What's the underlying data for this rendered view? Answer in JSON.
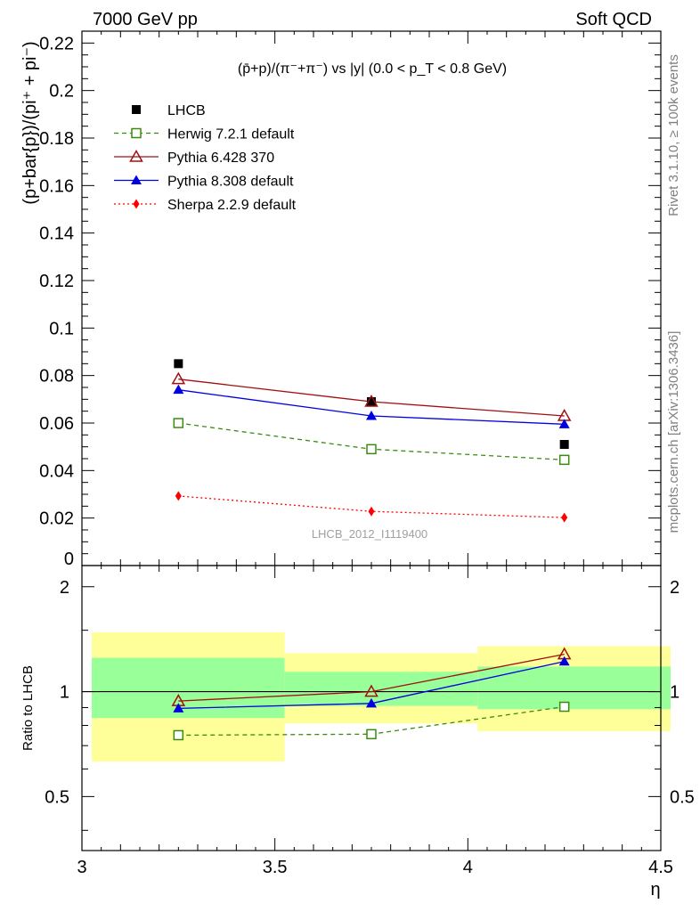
{
  "header": {
    "left": "7000 GeV pp",
    "right": "Soft QCD"
  },
  "side_labels": {
    "upper": "Rivet 3.1.10, ≥ 100k events",
    "lower": "mcplots.cern.ch [arXiv:1306.3436]"
  },
  "colors": {
    "data": "#000000",
    "herwig": "#3a8a12",
    "pythia6": "#a01010",
    "pythia8": "#0000e0",
    "sherpa": "#ff0000",
    "band_inner": "#99ff99",
    "band_outer": "#ffff99"
  },
  "chart_data": [
    {
      "type": "scatter",
      "panel": "main",
      "title": "(p̄+p)/(π⁻+π⁻) vs |y| (0.0 < p_T < 0.8 GeV)",
      "ylabel": "(p+bar{p})/(pi⁺ + pi⁻)",
      "watermark": "LHCB_2012_I1119400",
      "xlim": [
        3.0,
        4.5
      ],
      "ylim": [
        0,
        0.225
      ],
      "yticks": [
        "0",
        "0.02",
        "0.04",
        "0.06",
        "0.08",
        "0.1",
        "0.12",
        "0.14",
        "0.16",
        "0.18",
        "0.2",
        "0.22"
      ],
      "legend_position": "top-left",
      "x": [
        3.25,
        3.75,
        4.25
      ],
      "series": [
        {
          "name": "LHCB",
          "key": "data",
          "values": [
            0.085,
            0.069,
            0.051
          ]
        },
        {
          "name": "Herwig 7.2.1 default",
          "key": "herwig",
          "values": [
            0.06,
            0.049,
            0.0445
          ]
        },
        {
          "name": "Pythia 6.428 370",
          "key": "pythia6",
          "values": [
            0.0785,
            0.069,
            0.063
          ]
        },
        {
          "name": "Pythia 8.308 default",
          "key": "pythia8",
          "values": [
            0.074,
            0.063,
            0.0595
          ]
        },
        {
          "name": "Sherpa 2.2.9 default",
          "key": "sherpa",
          "values": [
            0.0293,
            0.0228,
            0.0202
          ]
        }
      ]
    },
    {
      "type": "line",
      "panel": "ratio",
      "ylabel": "Ratio to LHCB",
      "xlabel": "η",
      "xlim": [
        3.0,
        4.5
      ],
      "ylim": [
        0.35,
        2.3
      ],
      "xticks": [
        "3",
        "3.5",
        "4",
        "4.5"
      ],
      "yticks": [
        "0.5",
        "1",
        "2"
      ],
      "bins": [
        [
          3.0,
          3.5
        ],
        [
          3.5,
          4.0
        ],
        [
          4.0,
          4.5
        ]
      ],
      "band_inner": [
        [
          0.84,
          1.25
        ],
        [
          0.91,
          1.14
        ],
        [
          0.89,
          1.18
        ]
      ],
      "band_outer": [
        [
          0.63,
          1.48
        ],
        [
          0.81,
          1.29
        ],
        [
          0.77,
          1.35
        ]
      ],
      "x": [
        3.25,
        3.75,
        4.25
      ],
      "series": [
        {
          "key": "herwig",
          "values": [
            0.75,
            0.755,
            0.905
          ]
        },
        {
          "key": "pythia6",
          "values": [
            0.94,
            1.0,
            1.28
          ]
        },
        {
          "key": "pythia8",
          "values": [
            0.895,
            0.925,
            1.22
          ]
        }
      ]
    }
  ]
}
